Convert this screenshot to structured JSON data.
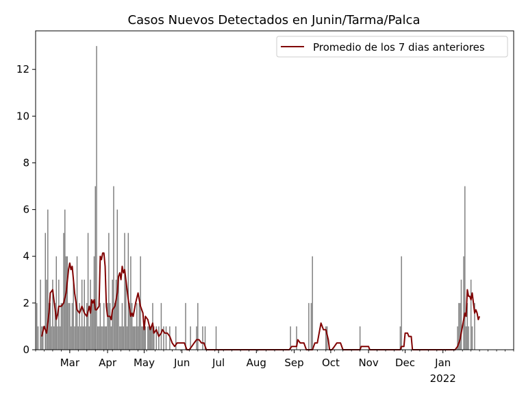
{
  "chart_data": {
    "type": "bar",
    "title": "Casos Nuevos Detectados en Junin/Tarma/Palca",
    "xlabel": "",
    "ylabel": "",
    "x_range": [
      "2021-02-01",
      "2022-02-28"
    ],
    "ylim": [
      0,
      13.65
    ],
    "yticks": [
      0,
      2,
      4,
      6,
      8,
      10,
      12
    ],
    "xticks": [
      {
        "date": "2021-03-01",
        "label": "Mar"
      },
      {
        "date": "2021-04-01",
        "label": "Apr"
      },
      {
        "date": "2021-05-01",
        "label": "May"
      },
      {
        "date": "2021-06-01",
        "label": "Jun"
      },
      {
        "date": "2021-07-01",
        "label": "Jul"
      },
      {
        "date": "2021-08-01",
        "label": "Aug"
      },
      {
        "date": "2021-09-01",
        "label": "Sep"
      },
      {
        "date": "2021-10-01",
        "label": "Oct"
      },
      {
        "date": "2021-11-01",
        "label": "Nov"
      },
      {
        "date": "2021-12-01",
        "label": "Dec"
      },
      {
        "date": "2022-01-01",
        "label": "Jan",
        "sublabel": "2022"
      }
    ],
    "grid": false,
    "legend_position": "top-right",
    "series": [
      {
        "name": "",
        "kind": "bar",
        "color": "#808080",
        "points": [
          [
            "2021-02-02",
            2
          ],
          [
            "2021-02-03",
            1
          ],
          [
            "2021-02-05",
            3
          ],
          [
            "2021-02-06",
            1
          ],
          [
            "2021-02-07",
            1
          ],
          [
            "2021-02-09",
            5
          ],
          [
            "2021-02-10",
            3
          ],
          [
            "2021-02-11",
            6
          ],
          [
            "2021-02-12",
            2
          ],
          [
            "2021-02-13",
            2
          ],
          [
            "2021-02-14",
            1
          ],
          [
            "2021-02-15",
            3
          ],
          [
            "2021-02-16",
            1
          ],
          [
            "2021-02-17",
            2
          ],
          [
            "2021-02-18",
            4
          ],
          [
            "2021-02-19",
            1
          ],
          [
            "2021-02-20",
            3
          ],
          [
            "2021-02-21",
            1
          ],
          [
            "2021-02-22",
            2
          ],
          [
            "2021-02-23",
            2
          ],
          [
            "2021-02-24",
            5
          ],
          [
            "2021-02-25",
            6
          ],
          [
            "2021-02-26",
            4
          ],
          [
            "2021-02-27",
            4
          ],
          [
            "2021-02-28",
            2
          ],
          [
            "2021-03-01",
            2
          ],
          [
            "2021-03-02",
            1
          ],
          [
            "2021-03-03",
            2
          ],
          [
            "2021-03-04",
            3
          ],
          [
            "2021-03-05",
            1
          ],
          [
            "2021-03-06",
            2
          ],
          [
            "2021-03-07",
            4
          ],
          [
            "2021-03-08",
            1
          ],
          [
            "2021-03-09",
            2
          ],
          [
            "2021-03-10",
            1
          ],
          [
            "2021-03-11",
            3
          ],
          [
            "2021-03-12",
            1
          ],
          [
            "2021-03-13",
            3
          ],
          [
            "2021-03-14",
            1
          ],
          [
            "2021-03-15",
            2
          ],
          [
            "2021-03-16",
            5
          ],
          [
            "2021-03-17",
            1
          ],
          [
            "2021-03-18",
            3
          ],
          [
            "2021-03-19",
            2
          ],
          [
            "2021-03-20",
            2
          ],
          [
            "2021-03-21",
            4
          ],
          [
            "2021-03-22",
            7
          ],
          [
            "2021-03-23",
            13
          ],
          [
            "2021-03-24",
            1
          ],
          [
            "2021-03-25",
            1
          ],
          [
            "2021-03-26",
            2
          ],
          [
            "2021-03-27",
            1
          ],
          [
            "2021-03-28",
            1
          ],
          [
            "2021-03-29",
            2
          ],
          [
            "2021-03-30",
            1
          ],
          [
            "2021-03-31",
            1
          ],
          [
            "2021-04-01",
            2
          ],
          [
            "2021-04-02",
            5
          ],
          [
            "2021-04-03",
            2
          ],
          [
            "2021-04-04",
            1
          ],
          [
            "2021-04-05",
            3
          ],
          [
            "2021-04-06",
            7
          ],
          [
            "2021-04-07",
            2
          ],
          [
            "2021-04-08",
            3
          ],
          [
            "2021-04-09",
            6
          ],
          [
            "2021-04-10",
            3
          ],
          [
            "2021-04-11",
            1
          ],
          [
            "2021-04-12",
            1
          ],
          [
            "2021-04-13",
            2
          ],
          [
            "2021-04-14",
            1
          ],
          [
            "2021-04-15",
            5
          ],
          [
            "2021-04-16",
            3
          ],
          [
            "2021-04-17",
            1
          ],
          [
            "2021-04-18",
            5
          ],
          [
            "2021-04-19",
            2
          ],
          [
            "2021-04-20",
            4
          ],
          [
            "2021-04-21",
            2
          ],
          [
            "2021-04-22",
            1
          ],
          [
            "2021-04-23",
            1
          ],
          [
            "2021-04-24",
            1
          ],
          [
            "2021-04-25",
            2
          ],
          [
            "2021-04-26",
            1
          ],
          [
            "2021-04-27",
            2
          ],
          [
            "2021-04-28",
            4
          ],
          [
            "2021-04-29",
            1
          ],
          [
            "2021-04-30",
            1
          ],
          [
            "2021-05-01",
            1
          ],
          [
            "2021-05-02",
            1
          ],
          [
            "2021-05-04",
            1
          ],
          [
            "2021-05-05",
            1
          ],
          [
            "2021-05-06",
            1
          ],
          [
            "2021-05-07",
            1
          ],
          [
            "2021-05-08",
            2
          ],
          [
            "2021-05-09",
            1
          ],
          [
            "2021-05-11",
            1
          ],
          [
            "2021-05-13",
            1
          ],
          [
            "2021-05-15",
            2
          ],
          [
            "2021-05-17",
            1
          ],
          [
            "2021-05-19",
            1
          ],
          [
            "2021-05-22",
            1
          ],
          [
            "2021-05-27",
            1
          ],
          [
            "2021-06-04",
            2
          ],
          [
            "2021-06-08",
            1
          ],
          [
            "2021-06-13",
            1
          ],
          [
            "2021-06-14",
            2
          ],
          [
            "2021-06-18",
            1
          ],
          [
            "2021-06-20",
            1
          ],
          [
            "2021-06-29",
            1
          ],
          [
            "2021-08-29",
            1
          ],
          [
            "2021-09-03",
            1
          ],
          [
            "2021-09-13",
            2
          ],
          [
            "2021-09-15",
            2
          ],
          [
            "2021-09-16",
            4
          ],
          [
            "2021-09-27",
            1
          ],
          [
            "2021-09-28",
            1
          ],
          [
            "2021-10-25",
            1
          ],
          [
            "2021-11-27",
            1
          ],
          [
            "2021-11-28",
            4
          ],
          [
            "2022-01-13",
            1
          ],
          [
            "2022-01-14",
            2
          ],
          [
            "2022-01-15",
            2
          ],
          [
            "2022-01-16",
            3
          ],
          [
            "2022-01-18",
            4
          ],
          [
            "2022-01-19",
            7
          ],
          [
            "2022-01-20",
            1
          ],
          [
            "2022-01-21",
            2
          ],
          [
            "2022-01-22",
            1
          ],
          [
            "2022-01-24",
            3
          ],
          [
            "2022-01-25",
            1
          ],
          [
            "2022-01-27",
            2
          ]
        ]
      },
      {
        "name": "Promedio de los 7 dias anteriores",
        "kind": "line",
        "color": "#800000",
        "points": [
          [
            "2021-02-06",
            0.57
          ],
          [
            "2021-02-08",
            1.0
          ],
          [
            "2021-02-10",
            0.71
          ],
          [
            "2021-02-12",
            1.6
          ],
          [
            "2021-02-13",
            2.43
          ],
          [
            "2021-02-15",
            2.57
          ],
          [
            "2021-02-16",
            2.14
          ],
          [
            "2021-02-18",
            1.3
          ],
          [
            "2021-02-19",
            1.5
          ],
          [
            "2021-02-20",
            1.86
          ],
          [
            "2021-02-22",
            1.86
          ],
          [
            "2021-02-24",
            2.0
          ],
          [
            "2021-02-26",
            2.43
          ],
          [
            "2021-02-28",
            3.43
          ],
          [
            "2021-03-01",
            3.71
          ],
          [
            "2021-03-02",
            3.43
          ],
          [
            "2021-03-03",
            3.57
          ],
          [
            "2021-03-05",
            2.43
          ],
          [
            "2021-03-07",
            1.71
          ],
          [
            "2021-03-09",
            1.57
          ],
          [
            "2021-03-11",
            1.86
          ],
          [
            "2021-03-13",
            1.57
          ],
          [
            "2021-03-15",
            1.43
          ],
          [
            "2021-03-17",
            1.86
          ],
          [
            "2021-03-18",
            1.57
          ],
          [
            "2021-03-19",
            2.14
          ],
          [
            "2021-03-20",
            2.0
          ],
          [
            "2021-03-21",
            2.14
          ],
          [
            "2021-03-22",
            1.71
          ],
          [
            "2021-03-23",
            1.71
          ],
          [
            "2021-03-25",
            1.86
          ],
          [
            "2021-03-26",
            4.0
          ],
          [
            "2021-03-27",
            3.86
          ],
          [
            "2021-03-28",
            4.14
          ],
          [
            "2021-03-29",
            4.14
          ],
          [
            "2021-03-30",
            3.57
          ],
          [
            "2021-03-31",
            1.86
          ],
          [
            "2021-04-01",
            1.43
          ],
          [
            "2021-04-02",
            1.43
          ],
          [
            "2021-04-03",
            1.43
          ],
          [
            "2021-04-04",
            1.29
          ],
          [
            "2021-04-05",
            1.71
          ],
          [
            "2021-04-07",
            1.86
          ],
          [
            "2021-04-09",
            2.43
          ],
          [
            "2021-04-10",
            3.14
          ],
          [
            "2021-04-11",
            3.29
          ],
          [
            "2021-04-12",
            3.0
          ],
          [
            "2021-04-13",
            3.57
          ],
          [
            "2021-04-14",
            3.29
          ],
          [
            "2021-04-15",
            3.43
          ],
          [
            "2021-04-16",
            3.0
          ],
          [
            "2021-04-18",
            2.14
          ],
          [
            "2021-04-20",
            1.43
          ],
          [
            "2021-04-21",
            1.57
          ],
          [
            "2021-04-22",
            1.43
          ],
          [
            "2021-04-24",
            2.0
          ],
          [
            "2021-04-26",
            2.43
          ],
          [
            "2021-04-28",
            1.86
          ],
          [
            "2021-04-30",
            1.57
          ],
          [
            "2021-05-01",
            0.86
          ],
          [
            "2021-05-02",
            1.43
          ],
          [
            "2021-05-04",
            1.29
          ],
          [
            "2021-05-06",
            0.86
          ],
          [
            "2021-05-08",
            1.14
          ],
          [
            "2021-05-09",
            0.71
          ],
          [
            "2021-05-11",
            0.86
          ],
          [
            "2021-05-13",
            0.57
          ],
          [
            "2021-05-15",
            0.71
          ],
          [
            "2021-05-16",
            0.86
          ],
          [
            "2021-05-18",
            0.71
          ],
          [
            "2021-05-20",
            0.71
          ],
          [
            "2021-05-22",
            0.57
          ],
          [
            "2021-05-24",
            0.29
          ],
          [
            "2021-05-26",
            0.14
          ],
          [
            "2021-05-28",
            0.29
          ],
          [
            "2021-06-03",
            0.29
          ],
          [
            "2021-06-05",
            0.0
          ],
          [
            "2021-06-07",
            0.0
          ],
          [
            "2021-06-09",
            0.14
          ],
          [
            "2021-06-11",
            0.29
          ],
          [
            "2021-06-13",
            0.43
          ],
          [
            "2021-06-15",
            0.43
          ],
          [
            "2021-06-17",
            0.29
          ],
          [
            "2021-06-19",
            0.29
          ],
          [
            "2021-06-21",
            0.0
          ],
          [
            "2021-08-28",
            0.0
          ],
          [
            "2021-08-30",
            0.14
          ],
          [
            "2021-09-03",
            0.14
          ],
          [
            "2021-09-04",
            0.43
          ],
          [
            "2021-09-06",
            0.29
          ],
          [
            "2021-09-09",
            0.29
          ],
          [
            "2021-09-11",
            0.0
          ],
          [
            "2021-09-16",
            0.0
          ],
          [
            "2021-09-18",
            0.29
          ],
          [
            "2021-09-20",
            0.29
          ],
          [
            "2021-09-22",
            0.86
          ],
          [
            "2021-09-23",
            1.14
          ],
          [
            "2021-09-25",
            0.86
          ],
          [
            "2021-09-27",
            0.86
          ],
          [
            "2021-09-29",
            0.43
          ],
          [
            "2021-09-30",
            0.0
          ],
          [
            "2021-10-02",
            0.0
          ],
          [
            "2021-10-04",
            0.14
          ],
          [
            "2021-10-06",
            0.29
          ],
          [
            "2021-10-09",
            0.29
          ],
          [
            "2021-10-11",
            0.0
          ],
          [
            "2021-10-25",
            0.0
          ],
          [
            "2021-10-26",
            0.14
          ],
          [
            "2021-11-01",
            0.14
          ],
          [
            "2021-11-02",
            0.0
          ],
          [
            "2021-11-27",
            0.0
          ],
          [
            "2021-11-28",
            0.14
          ],
          [
            "2021-11-30",
            0.14
          ],
          [
            "2021-12-01",
            0.71
          ],
          [
            "2021-12-03",
            0.71
          ],
          [
            "2021-12-04",
            0.57
          ],
          [
            "2021-12-06",
            0.57
          ],
          [
            "2021-12-07",
            0.0
          ],
          [
            "2022-01-11",
            0.0
          ],
          [
            "2022-01-13",
            0.14
          ],
          [
            "2022-01-15",
            0.43
          ],
          [
            "2022-01-17",
            1.0
          ],
          [
            "2022-01-19",
            1.57
          ],
          [
            "2022-01-20",
            1.43
          ],
          [
            "2022-01-21",
            2.57
          ],
          [
            "2022-01-22",
            2.29
          ],
          [
            "2022-01-23",
            2.29
          ],
          [
            "2022-01-24",
            2.14
          ],
          [
            "2022-01-25",
            2.43
          ],
          [
            "2022-01-26",
            2.0
          ],
          [
            "2022-01-27",
            1.57
          ],
          [
            "2022-01-28",
            1.71
          ],
          [
            "2022-01-29",
            1.57
          ],
          [
            "2022-01-30",
            1.29
          ],
          [
            "2022-01-31",
            1.43
          ]
        ]
      }
    ]
  }
}
